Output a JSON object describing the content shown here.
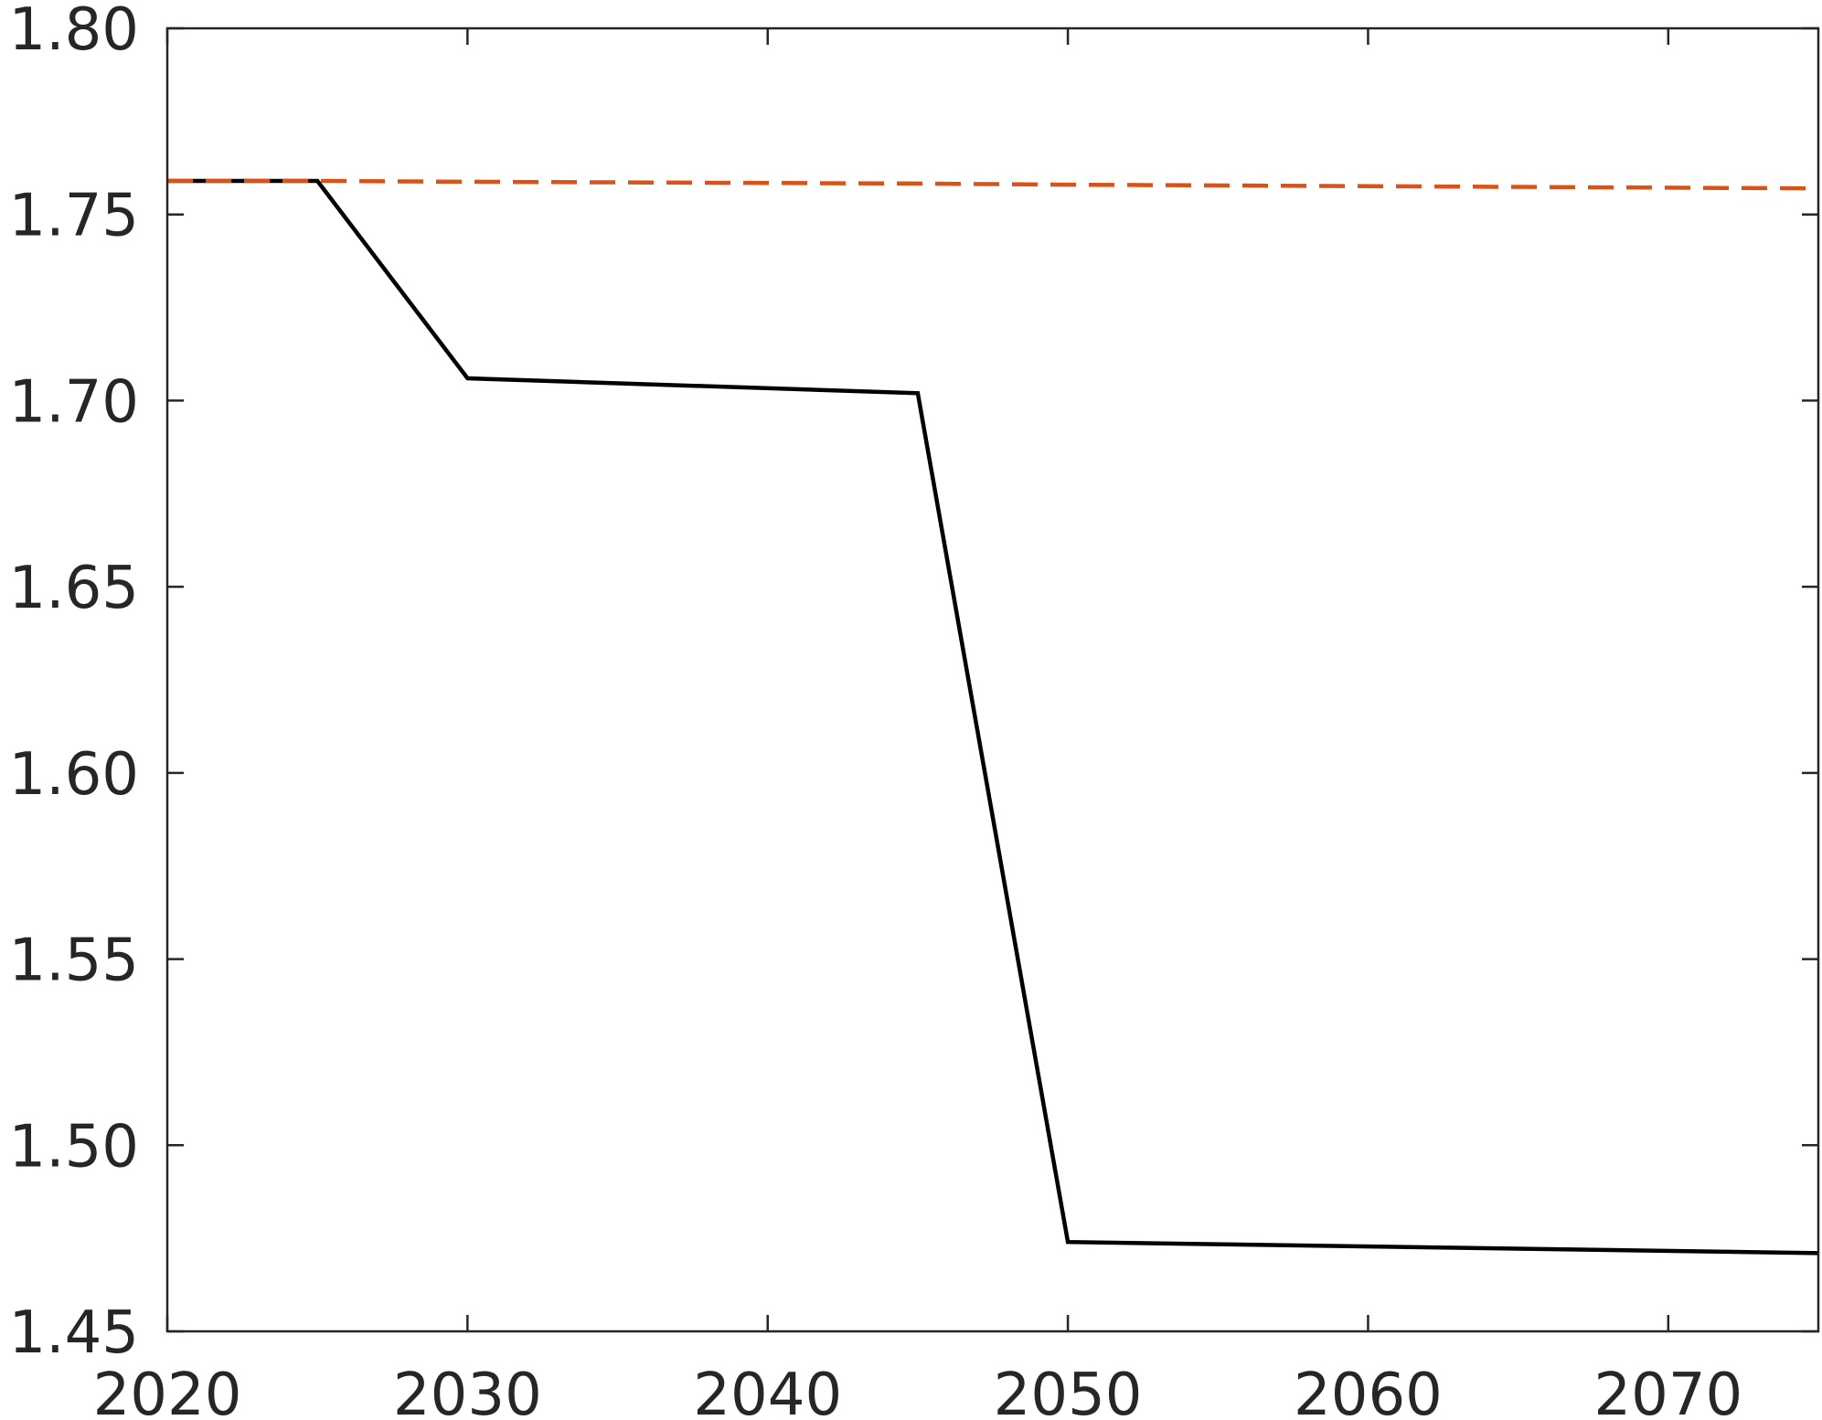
{
  "chart_data": {
    "type": "line",
    "title": "",
    "xlabel": "",
    "ylabel": "",
    "xlim": [
      2020,
      2075
    ],
    "ylim": [
      1.45,
      1.8
    ],
    "x_ticks": [
      2020,
      2030,
      2040,
      2050,
      2060,
      2070
    ],
    "x_tick_labels": [
      "2020",
      "2030",
      "2040",
      "2050",
      "2060",
      "2070"
    ],
    "y_ticks": [
      1.45,
      1.5,
      1.55,
      1.6,
      1.65,
      1.7,
      1.75,
      1.8
    ],
    "y_tick_labels": [
      "1.45",
      "1.50",
      "1.55",
      "1.60",
      "1.65",
      "1.70",
      "1.75",
      "1.80"
    ],
    "grid": false,
    "legend": "none",
    "series": [
      {
        "color": "#000000",
        "style": "solid",
        "x": [
          2020,
          2025,
          2030,
          2045,
          2050,
          2075
        ],
        "y": [
          1.759,
          1.759,
          1.706,
          1.702,
          1.474,
          1.471
        ]
      },
      {
        "color": "#D95319",
        "style": "dashed",
        "x": [
          2020,
          2025,
          2030,
          2045,
          2050,
          2075
        ],
        "y": [
          1.759,
          1.759,
          1.7588,
          1.7583,
          1.758,
          1.757
        ]
      }
    ]
  }
}
